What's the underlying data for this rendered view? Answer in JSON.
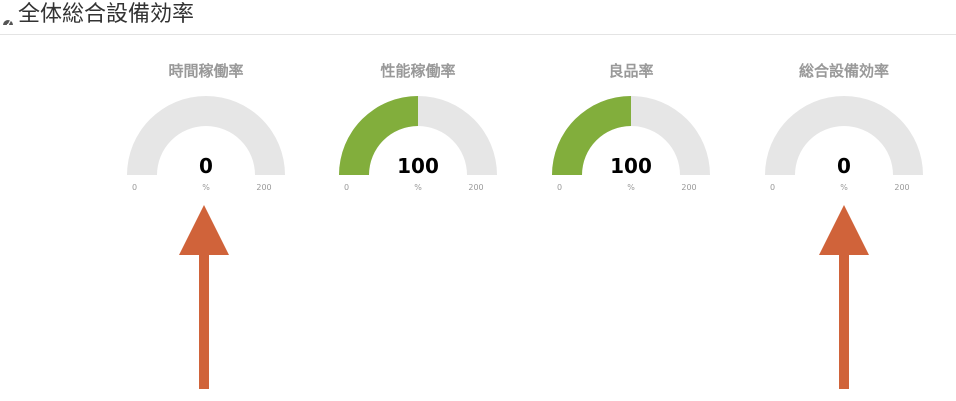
{
  "header": {
    "icon": "dashboard-gauge-icon",
    "title": "全体総合設備効率"
  },
  "colors": {
    "fill": "#82ae3c",
    "track": "#e6e6e6",
    "arrow": "#d0633a"
  },
  "gauges": [
    {
      "title": "時間稼働率",
      "value": "0",
      "unit": "%",
      "min": "0",
      "max": "200",
      "level": 0
    },
    {
      "title": "性能稼働率",
      "value": "100",
      "unit": "%",
      "min": "0",
      "max": "200",
      "level": 100
    },
    {
      "title": "良品率",
      "value": "100",
      "unit": "%",
      "min": "0",
      "max": "200",
      "level": 100
    },
    {
      "title": "総合設備効率",
      "value": "0",
      "unit": "%",
      "min": "0",
      "max": "200",
      "level": 0
    }
  ],
  "annotations": [
    {
      "icon": "arrow-up-icon",
      "points_to": "gauges.0"
    },
    {
      "icon": "arrow-up-icon",
      "points_to": "gauges.3"
    }
  ]
}
